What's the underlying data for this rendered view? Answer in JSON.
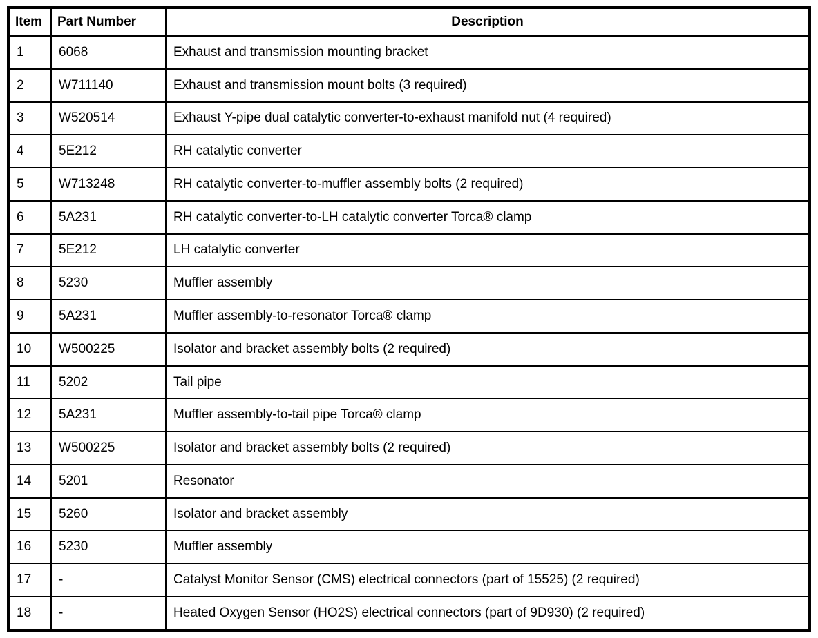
{
  "table": {
    "headers": [
      "Item",
      "Part Number",
      "Description"
    ],
    "rows": [
      [
        "1",
        "6068",
        "Exhaust and transmission mounting bracket"
      ],
      [
        "2",
        "W711140",
        "Exhaust and transmission mount bolts (3 required)"
      ],
      [
        "3",
        "W520514",
        "Exhaust Y-pipe dual catalytic converter-to-exhaust manifold nut (4 required)"
      ],
      [
        "4",
        "5E212",
        "RH catalytic converter"
      ],
      [
        "5",
        "W713248",
        "RH catalytic converter-to-muffler assembly bolts (2 required)"
      ],
      [
        "6",
        "5A231",
        "RH catalytic converter-to-LH catalytic converter Torca® clamp"
      ],
      [
        "7",
        "5E212",
        "LH catalytic converter"
      ],
      [
        "8",
        "5230",
        "Muffler assembly"
      ],
      [
        "9",
        "5A231",
        "Muffler assembly-to-resonator Torca® clamp"
      ],
      [
        "10",
        "W500225",
        "Isolator and bracket assembly bolts (2 required)"
      ],
      [
        "11",
        "5202",
        "Tail pipe"
      ],
      [
        "12",
        "5A231",
        "Muffler assembly-to-tail pipe Torca® clamp"
      ],
      [
        "13",
        "W500225",
        "Isolator and bracket assembly bolts (2 required)"
      ],
      [
        "14",
        "5201",
        "Resonator"
      ],
      [
        "15",
        "5260",
        "Isolator and bracket assembly"
      ],
      [
        "16",
        "5230",
        "Muffler assembly"
      ],
      [
        "17",
        "-",
        "Catalyst Monitor Sensor (CMS) electrical connectors (part of 15525) (2 required)"
      ],
      [
        "18",
        "-",
        "Heated Oxygen Sensor (HO2S) electrical connectors (part of 9D930) (2 required)"
      ]
    ],
    "colors": {
      "border": "#000000",
      "background": "#ffffff",
      "text": "#000000"
    }
  }
}
